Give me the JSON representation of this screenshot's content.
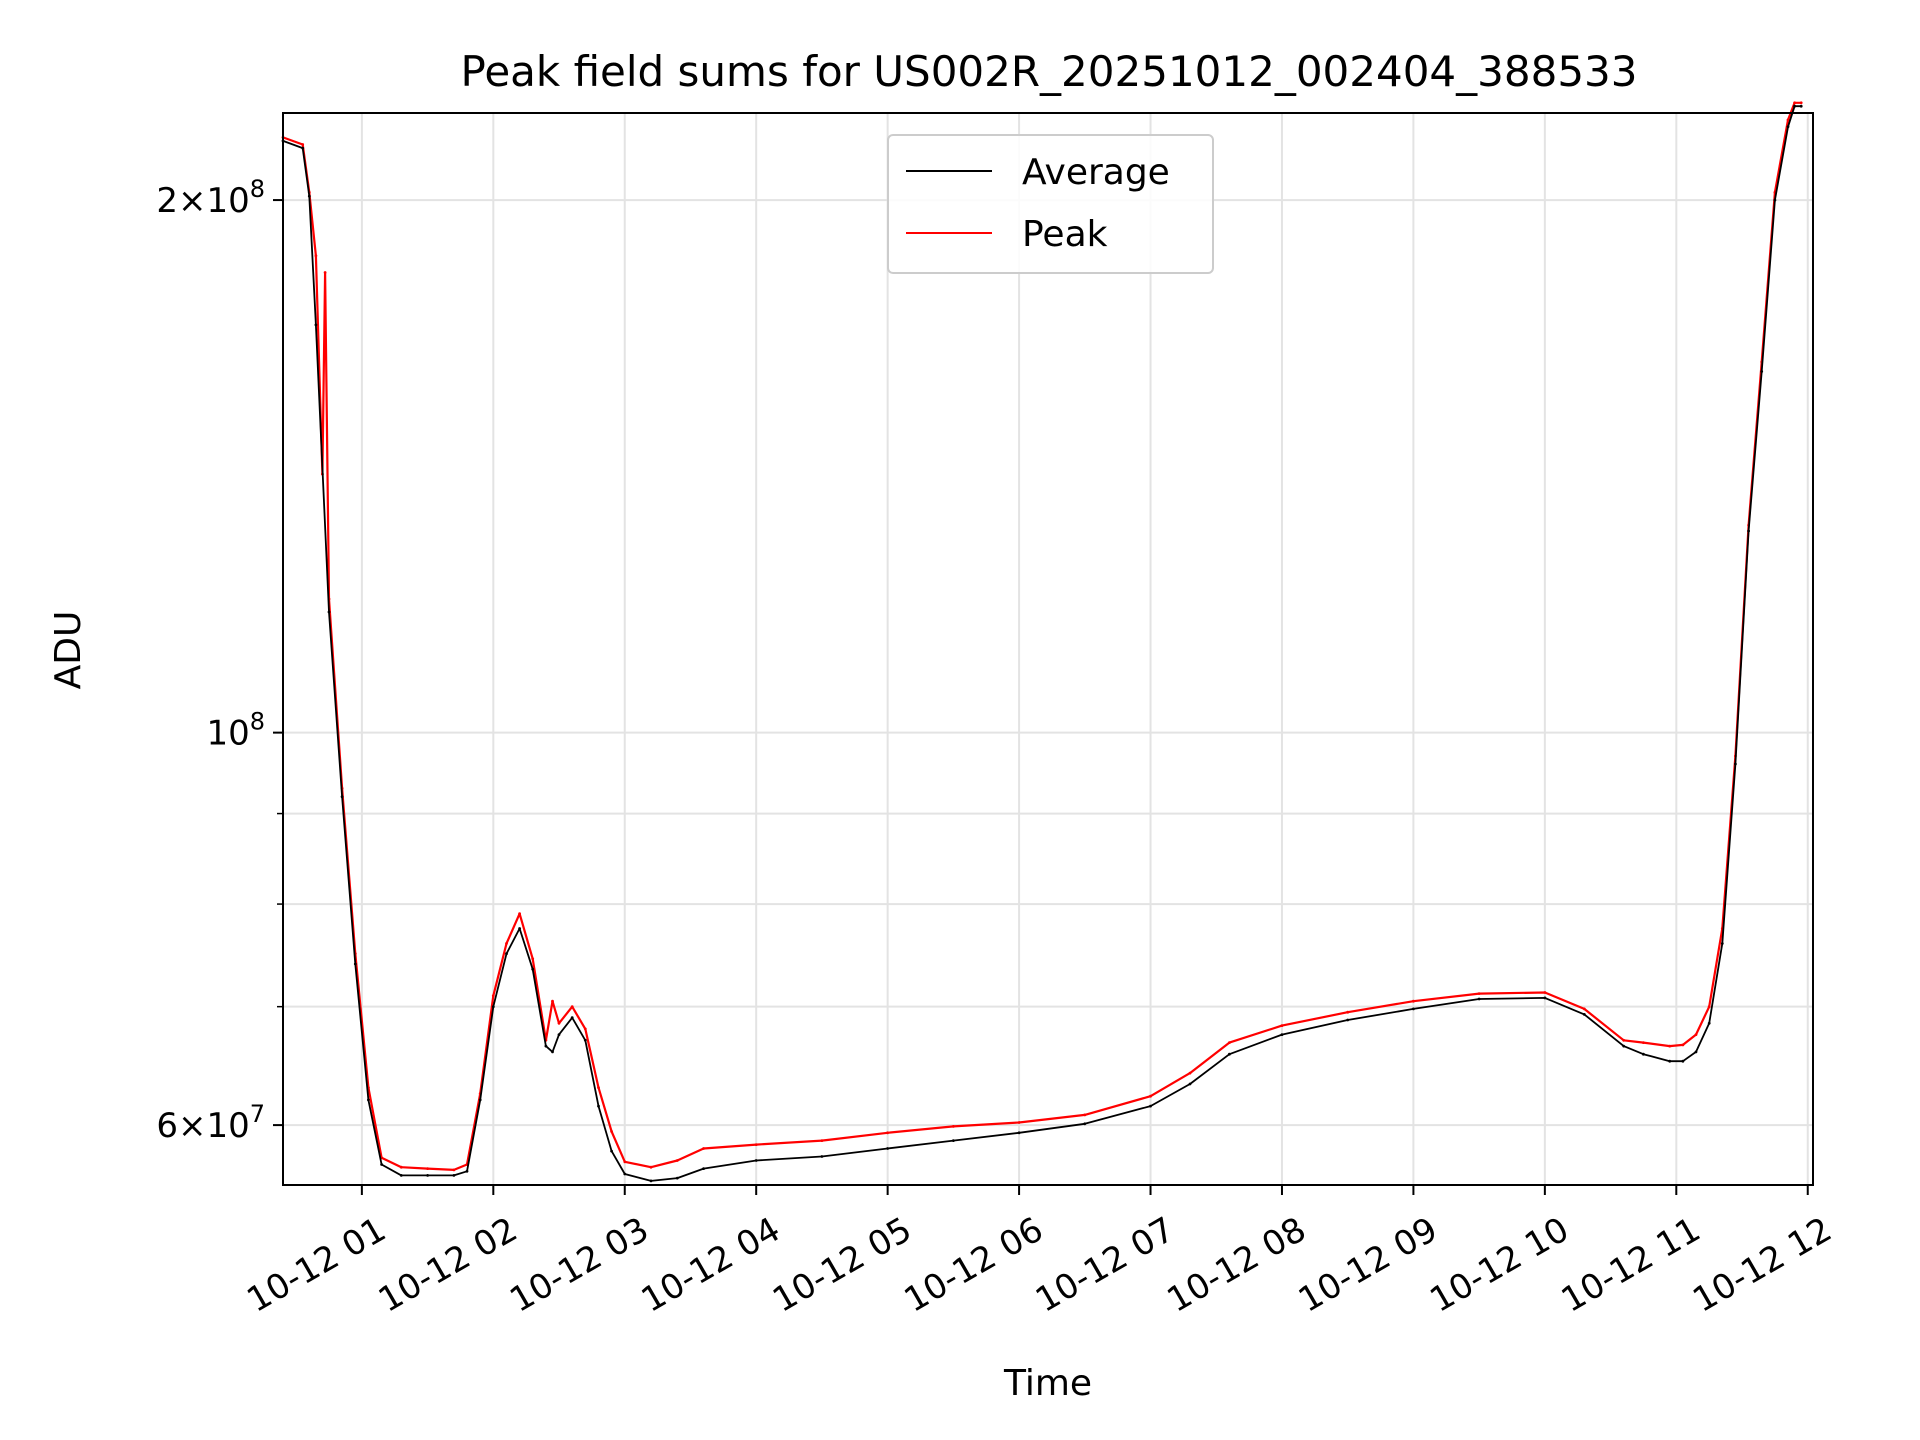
{
  "chart_data": {
    "type": "line",
    "title": "Peak field sums for US002R_20251012_002404_388533",
    "xlabel": "Time",
    "ylabel": "ADU",
    "yscale": "log",
    "xlim": [
      0.4,
      12.04
    ],
    "ylim": [
      55500000,
      224000000
    ],
    "grid": true,
    "legend_position": "top-center",
    "x_unit": "hours after 2025-10-12 00:00",
    "x_ticks": [
      {
        "value": 1,
        "label": "10-12 01"
      },
      {
        "value": 2,
        "label": "10-12 02"
      },
      {
        "value": 3,
        "label": "10-12 03"
      },
      {
        "value": 4,
        "label": "10-12 04"
      },
      {
        "value": 5,
        "label": "10-12 05"
      },
      {
        "value": 6,
        "label": "10-12 06"
      },
      {
        "value": 7,
        "label": "10-12 07"
      },
      {
        "value": 8,
        "label": "10-12 08"
      },
      {
        "value": 9,
        "label": "10-12 09"
      },
      {
        "value": 10,
        "label": "10-12 10"
      },
      {
        "value": 11,
        "label": "10-12 11"
      },
      {
        "value": 12,
        "label": "10-12 12"
      }
    ],
    "y_ticks_major": [
      {
        "value": 60000000,
        "mantissa": "6",
        "exponent": "7"
      },
      {
        "value": 100000000,
        "mantissa": "",
        "exponent": "8"
      },
      {
        "value": 200000000,
        "mantissa": "2",
        "exponent": "8"
      }
    ],
    "y_ticks_minor": [
      70000000,
      80000000,
      90000000
    ],
    "times_sign": "×",
    "base": "10",
    "series": [
      {
        "name": "Average",
        "color": "#000000",
        "x": [
          0.4,
          0.55,
          0.6,
          0.65,
          0.75,
          0.85,
          0.95,
          1.05,
          1.15,
          1.3,
          1.5,
          1.7,
          1.8,
          1.9,
          2.0,
          2.1,
          2.2,
          2.3,
          2.4,
          2.45,
          2.5,
          2.6,
          2.7,
          2.8,
          2.9,
          3.0,
          3.2,
          3.4,
          3.6,
          4.0,
          4.5,
          5.0,
          5.5,
          6.0,
          6.5,
          7.0,
          7.3,
          7.6,
          8.0,
          8.5,
          9.0,
          9.5,
          10.0,
          10.3,
          10.6,
          10.75,
          10.95,
          11.05,
          11.15,
          11.25,
          11.35,
          11.45,
          11.55,
          11.65,
          11.75,
          11.85,
          11.9,
          11.95
        ],
        "values": [
          216000000,
          214000000,
          201000000,
          170000000,
          117000000,
          92000000,
          74000000,
          62000000,
          57000000,
          56200000,
          56200000,
          56200000,
          56500000,
          62000000,
          70000000,
          75000000,
          77500000,
          73500000,
          66500000,
          66000000,
          67500000,
          69000000,
          67000000,
          61500000,
          58000000,
          56300000,
          55800000,
          56000000,
          56700000,
          57300000,
          57600000,
          58200000,
          58800000,
          59400000,
          60100000,
          61500000,
          63300000,
          65800000,
          67500000,
          68800000,
          69800000,
          70700000,
          70800000,
          69300000,
          66500000,
          65800000,
          65200000,
          65200000,
          66000000,
          68500000,
          76000000,
          96000000,
          130000000,
          160000000,
          200000000,
          220000000,
          226000000,
          226000000
        ]
      },
      {
        "name": "Peak",
        "color": "#ff0000",
        "x": [
          0.4,
          0.55,
          0.6,
          0.65,
          0.7,
          0.72,
          0.75,
          0.85,
          0.95,
          1.05,
          1.15,
          1.3,
          1.5,
          1.7,
          1.8,
          1.9,
          2.0,
          2.1,
          2.2,
          2.3,
          2.4,
          2.45,
          2.5,
          2.6,
          2.7,
          2.8,
          2.9,
          3.0,
          3.2,
          3.4,
          3.6,
          4.0,
          4.5,
          5.0,
          5.5,
          6.0,
          6.5,
          7.0,
          7.3,
          7.6,
          8.0,
          8.5,
          9.0,
          9.5,
          10.0,
          10.3,
          10.6,
          10.75,
          10.95,
          11.05,
          11.15,
          11.25,
          11.35,
          11.45,
          11.55,
          11.65,
          11.75,
          11.85,
          11.9,
          11.95
        ],
        "values": [
          217000000,
          215000000,
          202000000,
          186000000,
          140000000,
          182000000,
          119000000,
          93000000,
          75000000,
          63000000,
          57500000,
          56800000,
          56700000,
          56600000,
          57000000,
          62500000,
          71000000,
          76000000,
          79000000,
          74500000,
          67000000,
          70500000,
          68500000,
          70000000,
          68000000,
          63000000,
          59500000,
          57200000,
          56800000,
          57300000,
          58200000,
          58500000,
          58800000,
          59400000,
          59900000,
          60200000,
          60800000,
          62300000,
          64200000,
          66800000,
          68300000,
          69500000,
          70500000,
          71200000,
          71300000,
          69800000,
          67000000,
          66800000,
          66500000,
          66600000,
          67500000,
          70000000,
          77500000,
          97000000,
          131000000,
          162000000,
          202000000,
          222000000,
          227000000,
          227000000
        ]
      }
    ]
  }
}
